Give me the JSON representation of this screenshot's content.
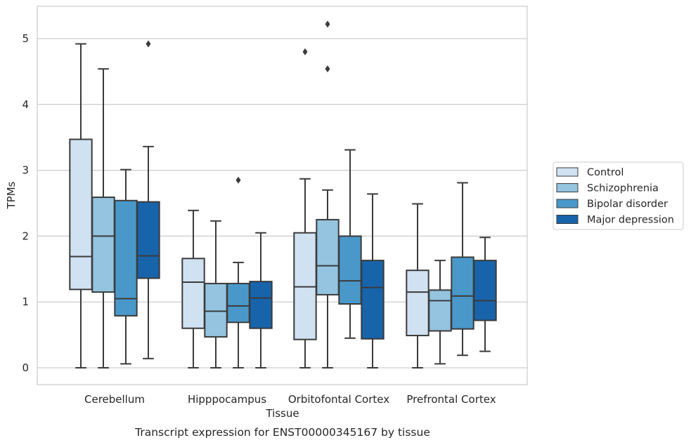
{
  "chart_data": {
    "type": "box",
    "title": "",
    "caption": "Transcript expression for ENST00000345167 by tissue",
    "xlabel": "Tissue",
    "ylabel": "TPMs",
    "ylim": [
      -0.25,
      5.5
    ],
    "yticks": [
      "0",
      "1",
      "2",
      "3",
      "4",
      "5"
    ],
    "grid": "horizontal",
    "legend_position": "right",
    "categories": [
      "Cerebellum",
      "Hipppocampus",
      "Orbitofontal Cortex",
      "Prefrontal Cortex"
    ],
    "series": [
      {
        "name": "Control",
        "color": "#d0e1f2",
        "boxes": [
          {
            "whislo": 0,
            "q1": 1.19,
            "median": 1.69,
            "q3": 3.47,
            "whishi": 4.92,
            "fliers": []
          },
          {
            "whislo": 0,
            "q1": 0.6,
            "median": 1.3,
            "q3": 1.66,
            "whishi": 2.39,
            "fliers": []
          },
          {
            "whislo": 0,
            "q1": 0.43,
            "median": 1.23,
            "q3": 2.05,
            "whishi": 2.87,
            "fliers": [
              4.8
            ]
          },
          {
            "whislo": 0,
            "q1": 0.49,
            "median": 1.15,
            "q3": 1.48,
            "whishi": 2.49,
            "fliers": []
          }
        ]
      },
      {
        "name": "Schizophrenia",
        "color": "#94c4df",
        "boxes": [
          {
            "whislo": 0,
            "q1": 1.15,
            "median": 2.0,
            "q3": 2.59,
            "whishi": 4.54,
            "fliers": []
          },
          {
            "whislo": 0,
            "q1": 0.47,
            "median": 0.86,
            "q3": 1.28,
            "whishi": 2.23,
            "fliers": []
          },
          {
            "whislo": 0,
            "q1": 1.11,
            "median": 1.55,
            "q3": 2.25,
            "whishi": 2.7,
            "fliers": [
              5.22,
              4.54
            ]
          },
          {
            "whislo": 0.06,
            "q1": 0.56,
            "median": 1.02,
            "q3": 1.18,
            "whishi": 1.63,
            "fliers": []
          }
        ]
      },
      {
        "name": "Bipolar disorder",
        "color": "#4a98c9",
        "boxes": [
          {
            "whislo": 0.06,
            "q1": 0.79,
            "median": 1.05,
            "q3": 2.54,
            "whishi": 3.01,
            "fliers": []
          },
          {
            "whislo": 0,
            "q1": 0.69,
            "median": 0.94,
            "q3": 1.28,
            "whishi": 1.6,
            "fliers": [
              2.85
            ]
          },
          {
            "whislo": 0.45,
            "q1": 0.97,
            "median": 1.32,
            "q3": 2.0,
            "whishi": 3.31,
            "fliers": []
          },
          {
            "whislo": 0.19,
            "q1": 0.59,
            "median": 1.09,
            "q3": 1.68,
            "whishi": 2.81,
            "fliers": []
          }
        ]
      },
      {
        "name": "Major depression",
        "color": "#1764ab",
        "boxes": [
          {
            "whislo": 0.14,
            "q1": 1.36,
            "median": 1.7,
            "q3": 2.52,
            "whishi": 3.36,
            "fliers": [
              4.92
            ]
          },
          {
            "whislo": 0,
            "q1": 0.6,
            "median": 1.06,
            "q3": 1.31,
            "whishi": 2.05,
            "fliers": []
          },
          {
            "whislo": 0,
            "q1": 0.44,
            "median": 1.22,
            "q3": 1.63,
            "whishi": 2.64,
            "fliers": []
          },
          {
            "whislo": 0.25,
            "q1": 0.72,
            "median": 1.02,
            "q3": 1.63,
            "whishi": 1.98,
            "fliers": []
          }
        ]
      }
    ]
  }
}
